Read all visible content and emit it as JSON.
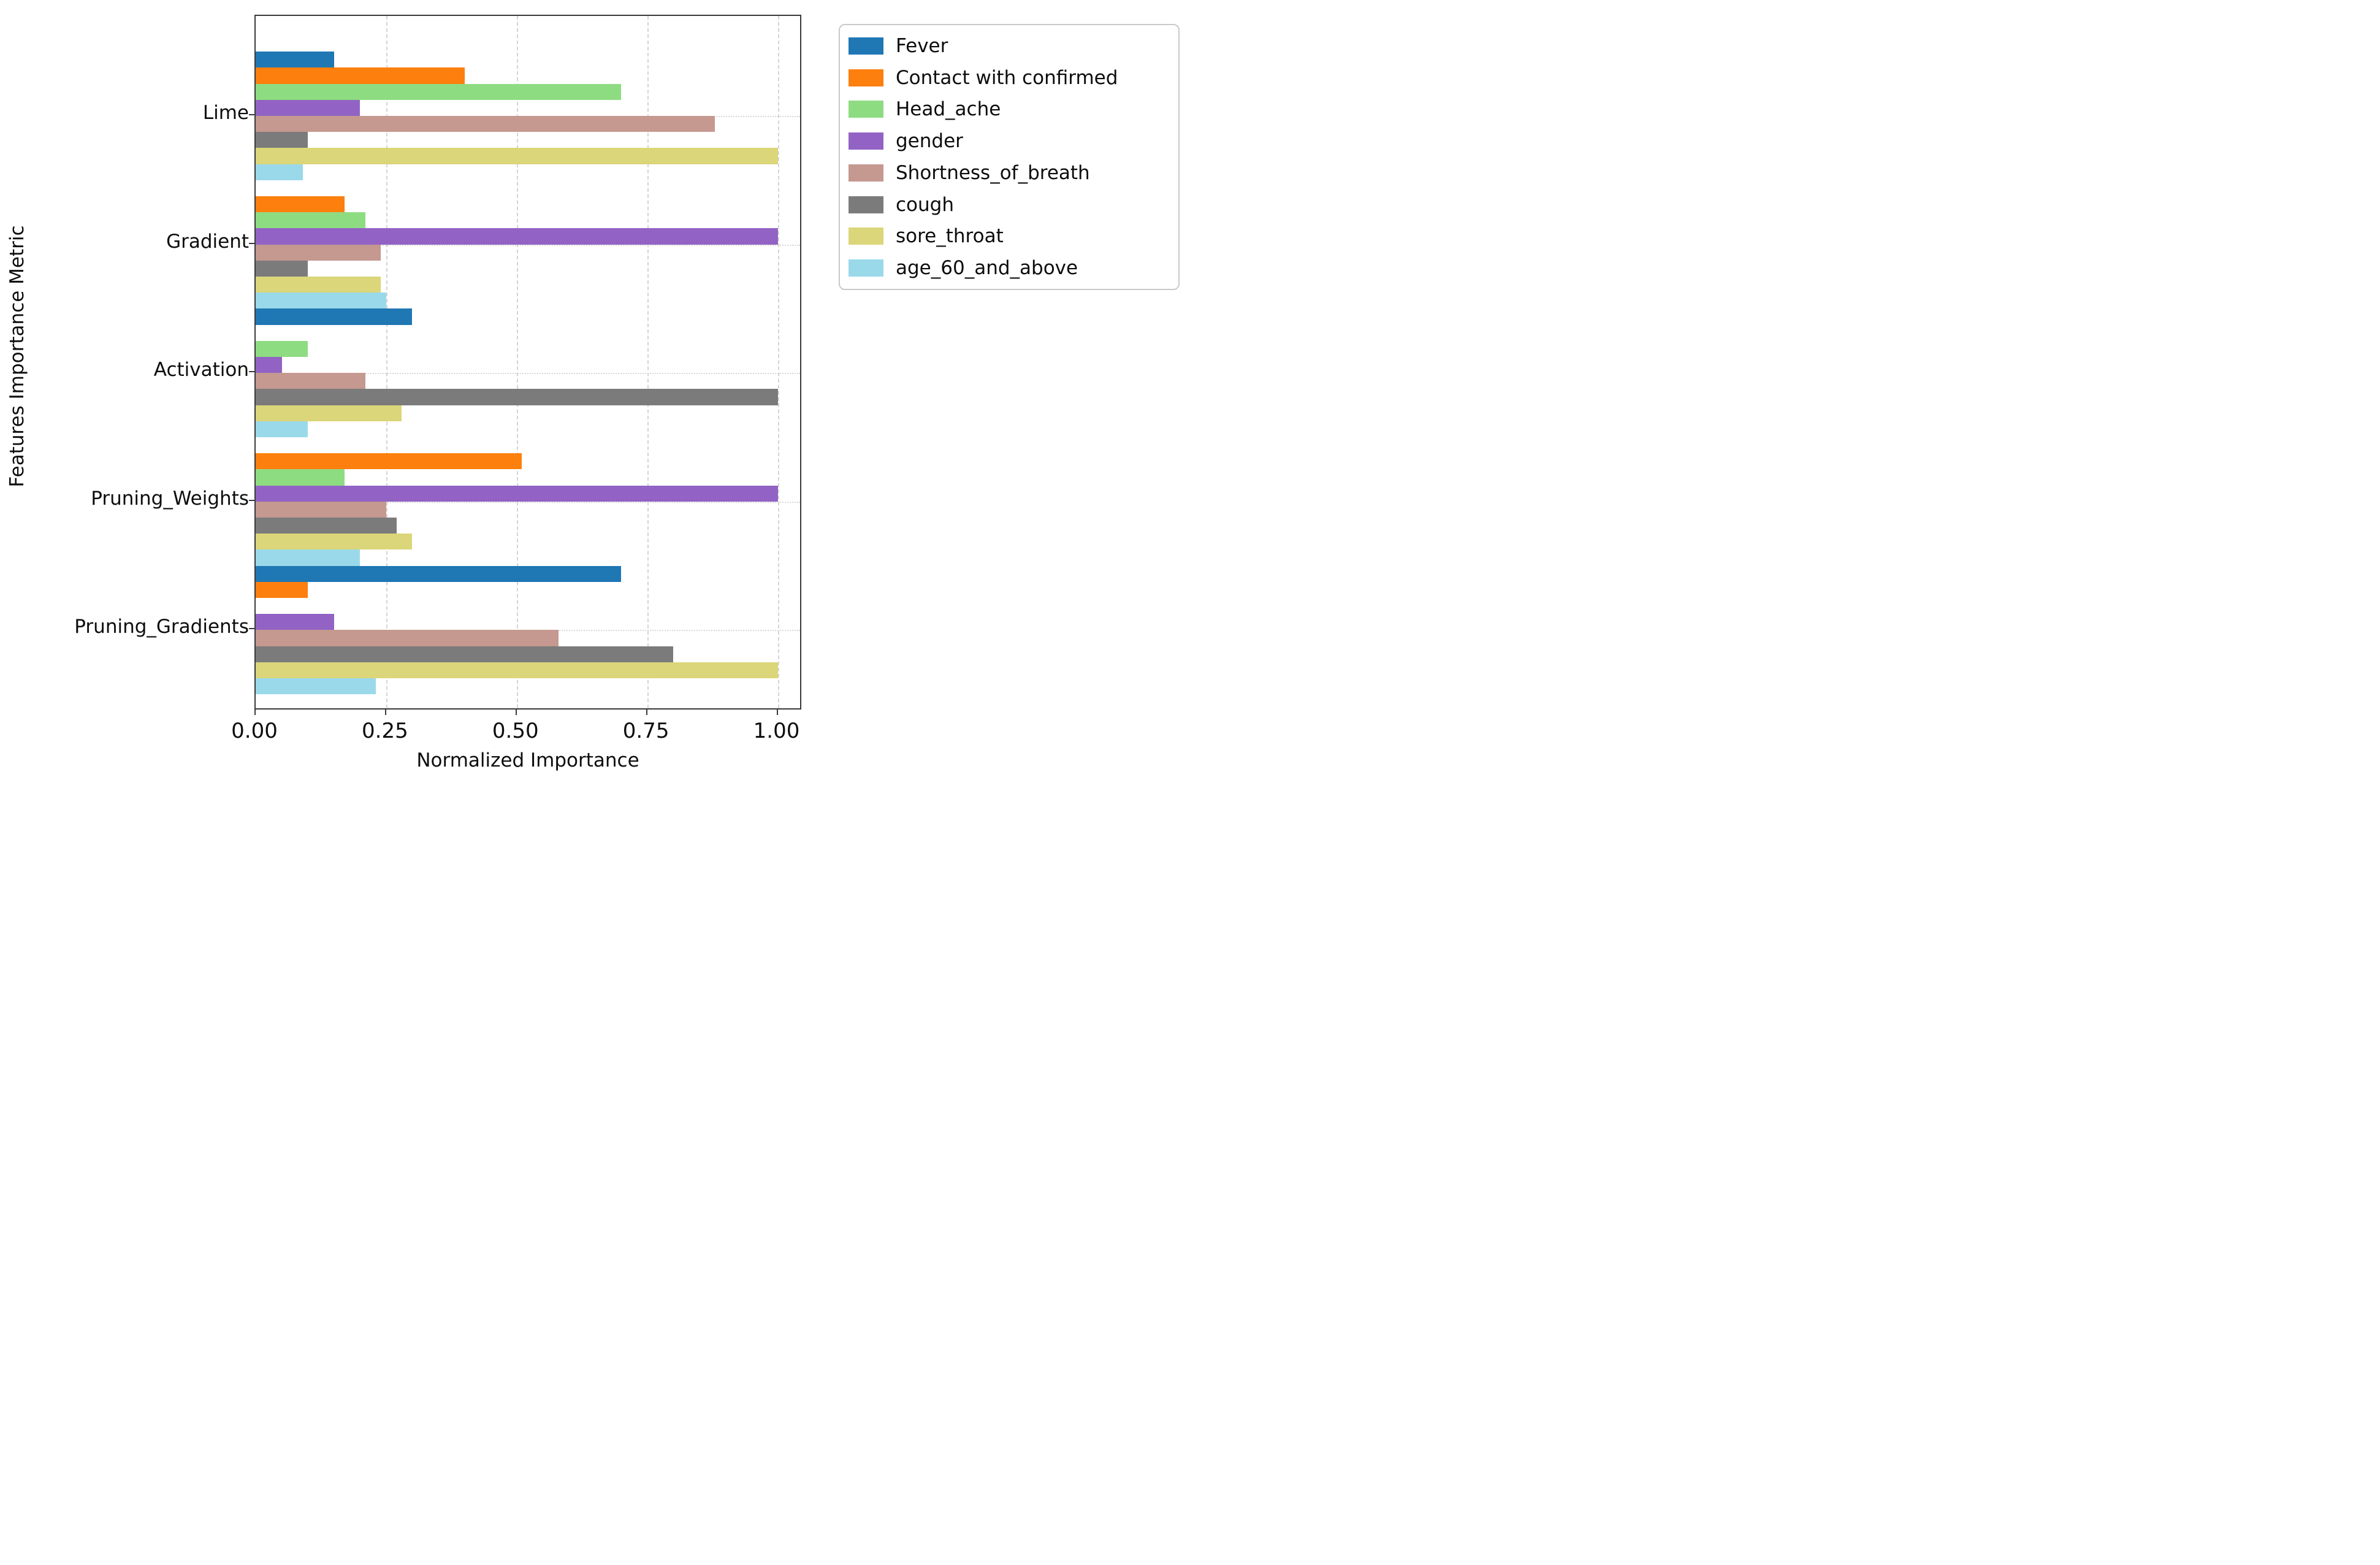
{
  "chart_data": {
    "type": "bar",
    "orientation": "horizontal",
    "title": "",
    "xlabel": "Normalized Importance",
    "ylabel": "Features Importance Metric",
    "categories": [
      "Lime",
      "Gradient",
      "Activation",
      "Pruning_Weights",
      "Pruning_Gradients"
    ],
    "series": [
      {
        "name": "Fever",
        "color": "#1f77b4",
        "values": [
          0.15,
          0.0,
          0.3,
          0.0,
          0.7
        ]
      },
      {
        "name": "Contact with confirmed",
        "color": "#fd7f0e",
        "values": [
          0.4,
          0.17,
          0.0,
          0.51,
          0.1
        ]
      },
      {
        "name": "Head_ache",
        "color": "#8edc82",
        "values": [
          0.7,
          0.21,
          0.1,
          0.17,
          0.0
        ]
      },
      {
        "name": "gender",
        "color": "#9263c4",
        "values": [
          0.2,
          1.0,
          0.05,
          1.0,
          0.15
        ]
      },
      {
        "name": "Shortness_of_breath",
        "color": "#c59890",
        "values": [
          0.88,
          0.24,
          0.21,
          0.25,
          0.58
        ]
      },
      {
        "name": "cough",
        "color": "#7b7b7b",
        "values": [
          0.1,
          0.1,
          1.0,
          0.27,
          0.8
        ]
      },
      {
        "name": "sore_throat",
        "color": "#dbd679",
        "values": [
          1.0,
          0.24,
          0.28,
          0.3,
          1.0
        ]
      },
      {
        "name": "age_60_and_above",
        "color": "#9ad9ea",
        "values": [
          0.09,
          0.25,
          0.1,
          0.2,
          0.23
        ]
      }
    ],
    "x_ticks": [
      0.0,
      0.25,
      0.5,
      0.75,
      1.0
    ],
    "x_tick_labels": [
      "0.00",
      "0.25",
      "0.50",
      "0.75",
      "1.00"
    ],
    "xlim": [
      0.0,
      1.047
    ],
    "grid": {
      "vertical": "dashed",
      "horizontal": "dotted",
      "shown": true
    },
    "legend_position": "outside-upper-right"
  }
}
